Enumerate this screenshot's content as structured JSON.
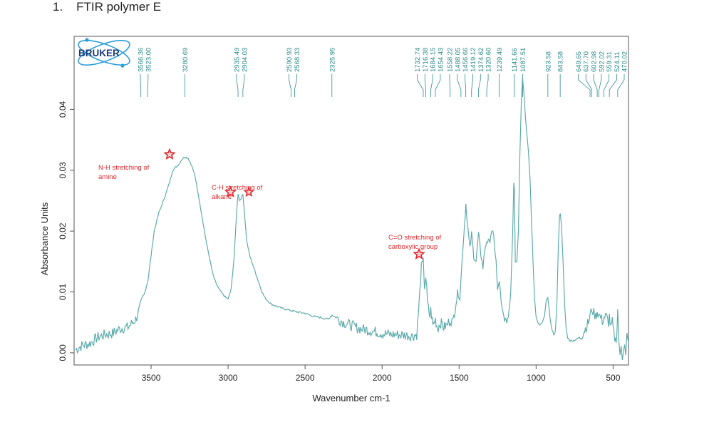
{
  "heading": {
    "number": "1.",
    "title": "FTIR polymer E"
  },
  "logo": {
    "text": "BRUKER"
  },
  "colors": {
    "spectrum": "#5aa9a9",
    "peak_labels": "#2e8b8b",
    "annotations": "#e0282e",
    "logo": "#1a3a7a",
    "logo_accent": "#2a9fd8"
  },
  "chart_data": {
    "type": "line",
    "title": "",
    "xlabel": "Wavenumber cm-1",
    "ylabel": "Absorbance Units",
    "xlim": [
      4000,
      400
    ],
    "ylim": [
      -0.002,
      0.052
    ],
    "x_reversed": true,
    "x_ticks": [
      3500,
      3000,
      2500,
      2000,
      1500,
      1000,
      500
    ],
    "y_ticks": [
      "0.00",
      "0.01",
      "0.02",
      "0.03",
      "0.04"
    ],
    "grid": false,
    "peak_labels": [
      "3566.36",
      "3523.00",
      "3280.69",
      "2935.49",
      "2904.03",
      "2590.93",
      "2568.33",
      "2325.95",
      "1732.74",
      "1716.38",
      "1684.15",
      "1654.43",
      "1558.22",
      "1488.05",
      "1456.66",
      "1419.12",
      "1374.62",
      "1320.60",
      "1239.49",
      "1141.66",
      "1087.51",
      "923.58",
      "843.58",
      "649.65",
      "637.70",
      "602.98",
      "592.02",
      "559.31",
      "524.11",
      "470.02"
    ],
    "annotations": [
      {
        "text": [
          "N-H stretching of",
          "amine"
        ],
        "star_at": [
          3380,
          0.0326
        ]
      },
      {
        "text": [
          "C-H stretching of",
          "alkane"
        ],
        "star_at": [
          2985,
          0.0264
        ],
        "star2_at": [
          2865,
          0.0264
        ]
      },
      {
        "text": [
          "C=O stretching of",
          "carboxylic group"
        ],
        "star_at": [
          1760,
          0.0162
        ]
      }
    ],
    "series": [
      {
        "points": [
          [
            3990,
            0.0005
          ],
          [
            3950,
            0.0012
          ],
          [
            3900,
            0.0015
          ],
          [
            3850,
            0.0025
          ],
          [
            3800,
            0.003
          ],
          [
            3750,
            0.0032
          ],
          [
            3700,
            0.004
          ],
          [
            3650,
            0.0042
          ],
          [
            3600,
            0.0055
          ],
          [
            3570,
            0.0075
          ],
          [
            3540,
            0.01
          ],
          [
            3520,
            0.012
          ],
          [
            3500,
            0.016
          ],
          [
            3480,
            0.02
          ],
          [
            3450,
            0.023
          ],
          [
            3420,
            0.025
          ],
          [
            3400,
            0.0265
          ],
          [
            3380,
            0.028
          ],
          [
            3360,
            0.03
          ],
          [
            3340,
            0.0305
          ],
          [
            3320,
            0.031
          ],
          [
            3300,
            0.0318
          ],
          [
            3280,
            0.0322
          ],
          [
            3260,
            0.032
          ],
          [
            3240,
            0.031
          ],
          [
            3220,
            0.0295
          ],
          [
            3200,
            0.027
          ],
          [
            3180,
            0.024
          ],
          [
            3160,
            0.021
          ],
          [
            3140,
            0.018
          ],
          [
            3120,
            0.0155
          ],
          [
            3100,
            0.013
          ],
          [
            3080,
            0.0115
          ],
          [
            3060,
            0.0105
          ],
          [
            3040,
            0.0098
          ],
          [
            3020,
            0.0092
          ],
          [
            3000,
            0.0088
          ],
          [
            2980,
            0.0105
          ],
          [
            2960,
            0.016
          ],
          [
            2945,
            0.023
          ],
          [
            2935,
            0.0262
          ],
          [
            2925,
            0.025
          ],
          [
            2915,
            0.0255
          ],
          [
            2904,
            0.026
          ],
          [
            2895,
            0.0235
          ],
          [
            2880,
            0.0185
          ],
          [
            2860,
            0.016
          ],
          [
            2840,
            0.0145
          ],
          [
            2820,
            0.013
          ],
          [
            2800,
            0.0115
          ],
          [
            2780,
            0.01
          ],
          [
            2760,
            0.009
          ],
          [
            2740,
            0.0085
          ],
          [
            2720,
            0.008
          ],
          [
            2700,
            0.0078
          ],
          [
            2650,
            0.0073
          ],
          [
            2600,
            0.007
          ],
          [
            2550,
            0.0067
          ],
          [
            2500,
            0.0065
          ],
          [
            2450,
            0.006
          ],
          [
            2400,
            0.0058
          ],
          [
            2350,
            0.0055
          ],
          [
            2325,
            0.0062
          ],
          [
            2300,
            0.0058
          ],
          [
            2250,
            0.005
          ],
          [
            2200,
            0.0045
          ],
          [
            2150,
            0.004
          ],
          [
            2100,
            0.0038
          ],
          [
            2050,
            0.0035
          ],
          [
            2000,
            0.0032
          ],
          [
            1950,
            0.003
          ],
          [
            1900,
            0.003
          ],
          [
            1850,
            0.0029
          ],
          [
            1800,
            0.0028
          ],
          [
            1775,
            0.003
          ],
          [
            1760,
            0.008
          ],
          [
            1745,
            0.014
          ],
          [
            1733,
            0.0148
          ],
          [
            1725,
            0.011
          ],
          [
            1716,
            0.0125
          ],
          [
            1705,
            0.008
          ],
          [
            1690,
            0.006
          ],
          [
            1684,
            0.007
          ],
          [
            1670,
            0.0045
          ],
          [
            1654,
            0.0055
          ],
          [
            1640,
            0.004
          ],
          [
            1620,
            0.005
          ],
          [
            1600,
            0.0042
          ],
          [
            1580,
            0.0045
          ],
          [
            1558,
            0.0055
          ],
          [
            1540,
            0.005
          ],
          [
            1520,
            0.0085
          ],
          [
            1505,
            0.01
          ],
          [
            1495,
            0.009
          ],
          [
            1488,
            0.012
          ],
          [
            1475,
            0.0175
          ],
          [
            1465,
            0.021
          ],
          [
            1456,
            0.0245
          ],
          [
            1445,
            0.021
          ],
          [
            1430,
            0.017
          ],
          [
            1419,
            0.0195
          ],
          [
            1405,
            0.016
          ],
          [
            1390,
            0.015
          ],
          [
            1374,
            0.0195
          ],
          [
            1360,
            0.0165
          ],
          [
            1345,
            0.014
          ],
          [
            1333,
            0.017
          ],
          [
            1320,
            0.0185
          ],
          [
            1305,
            0.018
          ],
          [
            1290,
            0.02
          ],
          [
            1275,
            0.019
          ],
          [
            1260,
            0.015
          ],
          [
            1250,
            0.01
          ],
          [
            1239,
            0.012
          ],
          [
            1225,
            0.0075
          ],
          [
            1210,
            0.006
          ],
          [
            1195,
            0.005
          ],
          [
            1180,
            0.006
          ],
          [
            1165,
            0.01
          ],
          [
            1152,
            0.02
          ],
          [
            1145,
            0.028
          ],
          [
            1141,
            0.027
          ],
          [
            1135,
            0.015
          ],
          [
            1125,
            0.015
          ],
          [
            1115,
            0.02
          ],
          [
            1105,
            0.033
          ],
          [
            1095,
            0.042
          ],
          [
            1088,
            0.0453
          ],
          [
            1080,
            0.043
          ],
          [
            1070,
            0.039
          ],
          [
            1060,
            0.036
          ],
          [
            1050,
            0.033
          ],
          [
            1040,
            0.029
          ],
          [
            1030,
            0.022
          ],
          [
            1020,
            0.015
          ],
          [
            1010,
            0.009
          ],
          [
            1000,
            0.006
          ],
          [
            990,
            0.005
          ],
          [
            975,
            0.0045
          ],
          [
            960,
            0.005
          ],
          [
            945,
            0.006
          ],
          [
            935,
            0.0085
          ],
          [
            924,
            0.009
          ],
          [
            915,
            0.007
          ],
          [
            905,
            0.005
          ],
          [
            895,
            0.0035
          ],
          [
            885,
            0.003
          ],
          [
            875,
            0.0035
          ],
          [
            865,
            0.008
          ],
          [
            855,
            0.018
          ],
          [
            848,
            0.0225
          ],
          [
            843,
            0.0228
          ],
          [
            835,
            0.021
          ],
          [
            825,
            0.015
          ],
          [
            815,
            0.008
          ],
          [
            805,
            0.004
          ],
          [
            795,
            0.0025
          ],
          [
            780,
            0.002
          ],
          [
            760,
            0.002
          ],
          [
            740,
            0.0022
          ],
          [
            720,
            0.0025
          ],
          [
            700,
            0.003
          ],
          [
            680,
            0.004
          ],
          [
            660,
            0.005
          ],
          [
            650,
            0.006
          ],
          [
            637,
            0.0072
          ],
          [
            625,
            0.0065
          ],
          [
            612,
            0.006
          ],
          [
            603,
            0.0068
          ],
          [
            592,
            0.0062
          ],
          [
            580,
            0.0058
          ],
          [
            570,
            0.0052
          ],
          [
            559,
            0.0058
          ],
          [
            545,
            0.006
          ],
          [
            530,
            0.005
          ],
          [
            524,
            0.006
          ],
          [
            515,
            0.004
          ],
          [
            505,
            0.005
          ],
          [
            495,
            0.003
          ],
          [
            485,
            0.002
          ],
          [
            476,
            0.003
          ],
          [
            470,
            0.007
          ],
          [
            462,
            0.002
          ],
          [
            455,
            -0.001
          ],
          [
            448,
            0.001
          ],
          [
            440,
            -0.0008
          ],
          [
            432,
            0.001
          ],
          [
            425,
            0.002
          ],
          [
            418,
            0.0
          ],
          [
            410,
            0.003
          ],
          [
            403,
            0.002
          ]
        ]
      }
    ]
  }
}
